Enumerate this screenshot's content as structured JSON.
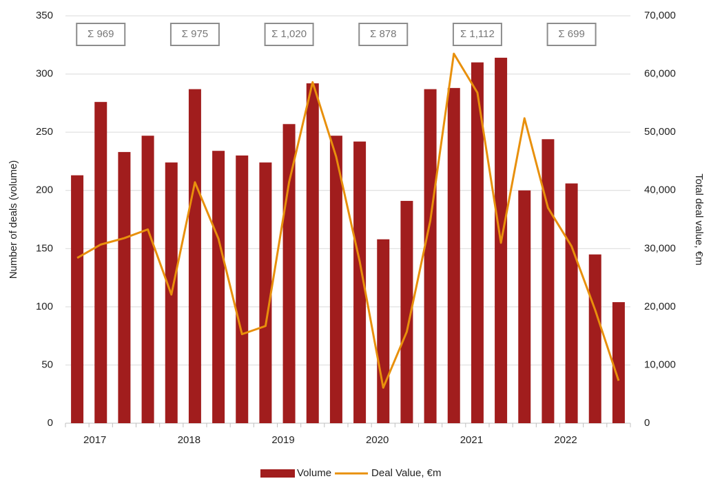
{
  "chart_data": {
    "type": "bar_line",
    "categories": [
      "2017",
      null,
      null,
      null,
      "2018",
      null,
      null,
      null,
      "2019",
      null,
      null,
      null,
      "2020",
      null,
      null,
      null,
      "2021",
      null,
      null,
      null,
      "2022",
      null,
      null,
      null
    ],
    "series": [
      {
        "name": "Volume",
        "type": "bar",
        "color": "#a11d1d",
        "values": [
          213,
          276,
          233,
          247,
          224,
          287,
          234,
          230,
          224,
          257,
          292,
          247,
          242,
          158,
          191,
          287,
          288,
          310,
          314,
          200,
          244,
          206,
          145,
          104
        ]
      },
      {
        "name": "Deal Value, €m",
        "type": "line",
        "axis": "y2",
        "color": "#e8900c",
        "values": [
          28400,
          30700,
          31800,
          33300,
          22100,
          41400,
          31700,
          15300,
          16700,
          41400,
          58600,
          45800,
          27800,
          6100,
          15700,
          34800,
          63500,
          56800,
          31000,
          52400,
          37000,
          30400,
          19500,
          7300
        ]
      }
    ],
    "annotations": [
      "Σ 969",
      "Σ 975",
      "Σ 1,020",
      "Σ 878",
      "Σ 1,112",
      "Σ 699"
    ],
    "ylabel": "Number of deals (volume)",
    "y2label": "Total deal value, €m",
    "ylim": [
      0,
      350
    ],
    "yticks": [
      0,
      50,
      100,
      150,
      200,
      250,
      300,
      350
    ],
    "y2lim": [
      0,
      70000
    ],
    "y2ticks": [
      0,
      {
        "value": 10000,
        "label": "10,000"
      },
      {
        "value": 20000,
        "label": "20,000"
      },
      {
        "value": 30000,
        "label": "30,000"
      },
      {
        "value": 40000,
        "label": "40,000"
      },
      {
        "value": 50000,
        "label": "50,000"
      },
      {
        "value": 60000,
        "label": "60,000"
      },
      {
        "value": 70000,
        "label": "70,000"
      }
    ],
    "grid": true,
    "legend": "bottom"
  }
}
